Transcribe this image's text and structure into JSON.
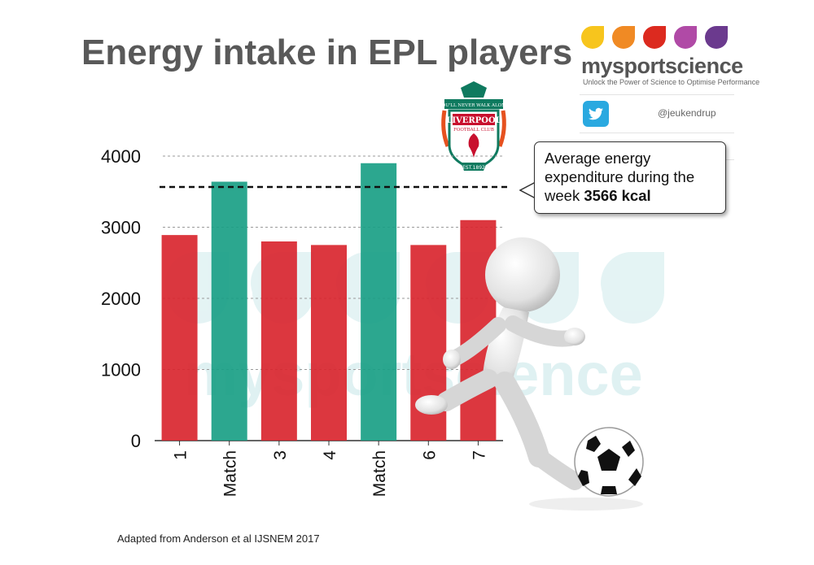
{
  "title": "Energy intake in EPL players",
  "brand": {
    "name": "mysportscience",
    "tagline": "Unlock the Power of Science to Optimise Performance",
    "drop_colors": [
      "#f7c51d",
      "#f08a24",
      "#dc2a1f",
      "#b04aa6",
      "#6b3a8e"
    ]
  },
  "social": {
    "icon": "twitter-icon",
    "handle": "@jeukendrup"
  },
  "crest": {
    "icon": "liverpool-crest-icon",
    "motto": "YOU'LL NEVER WALK ALONE",
    "name": "LIVERPOOL",
    "subtitle": "FOOTBALL CLUB",
    "established": "EST.1892"
  },
  "watermark": "mysportscience",
  "callout": {
    "text_before": "Average energy expenditure during the week ",
    "highlight": "3566 kcal"
  },
  "footnote": "Adapted from Anderson et al IJSNEM 2017",
  "illustration": {
    "player": "kicking-figure-icon",
    "ball": "soccer-ball-icon"
  },
  "colors": {
    "training": "#d9262f",
    "match": "#1aa085",
    "title": "#595959"
  },
  "chart_data": {
    "type": "bar",
    "categories": [
      "1",
      "Match",
      "3",
      "4",
      "Match",
      "6",
      "7"
    ],
    "values": [
      2890,
      3640,
      2800,
      2750,
      3900,
      2750,
      3100
    ],
    "bar_kind": [
      "training",
      "match",
      "training",
      "training",
      "match",
      "training",
      "training"
    ],
    "ylim": [
      0,
      4000
    ],
    "yticks": [
      0,
      1000,
      2000,
      3000,
      4000
    ],
    "reference_line": {
      "value": 3566,
      "style": "dashed"
    },
    "grid": true
  }
}
